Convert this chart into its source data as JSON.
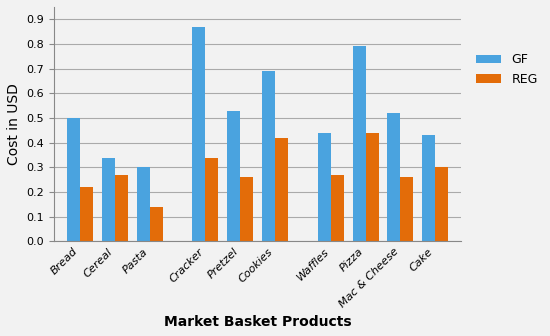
{
  "categories": [
    "Bread",
    "Cereal",
    "Pasta",
    "Cracker",
    "Pretzel",
    "Cookies",
    "Waffles",
    "Pizza",
    "Mac & Cheese",
    "Cake"
  ],
  "gf_values": [
    0.5,
    0.34,
    0.3,
    0.87,
    0.53,
    0.69,
    0.44,
    0.79,
    0.52,
    0.43
  ],
  "reg_values": [
    0.22,
    0.27,
    0.14,
    0.34,
    0.26,
    0.42,
    0.27,
    0.44,
    0.26,
    0.3
  ],
  "gf_color": "#4AA3DF",
  "reg_color": "#E36C09",
  "xlabel": "Market Basket Products",
  "ylabel": "Cost in USD",
  "ylim": [
    0,
    0.95
  ],
  "yticks": [
    0.0,
    0.1,
    0.2,
    0.3,
    0.4,
    0.5,
    0.6,
    0.7,
    0.8,
    0.9
  ],
  "legend_labels": [
    "GF",
    "REG"
  ],
  "bar_width": 0.28,
  "background_color": "#F2F2F2",
  "plot_bg_color": "#F2F2F2",
  "grid_color": "#AAAAAA",
  "axis_label_fontsize": 10,
  "tick_fontsize": 8,
  "legend_fontsize": 9
}
